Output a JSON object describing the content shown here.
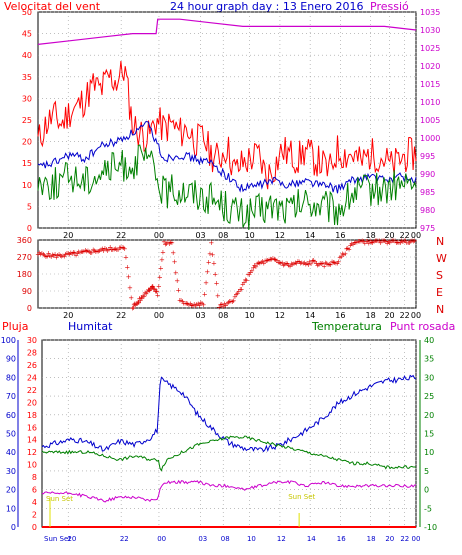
{
  "header": {
    "left_title": "Velocitat del vent",
    "center_title": "24 hour graph day : 13 Enero 2016",
    "right_title": "Pressió"
  },
  "bottom_header": {
    "left": "Pluja",
    "humidity": "Humitat",
    "temperature": "Temperatura",
    "dewpoint": "Punt rosada"
  },
  "colors": {
    "wind": "#ff0000",
    "wind_avg": "#0000cc",
    "wind_low": "#008000",
    "pressure": "#cc00cc",
    "direction": "#dd0000",
    "humidity": "#0000cc",
    "temperature": "#008000",
    "dewpoint": "#cc00cc",
    "rain": "#ff0000",
    "sun": "#e0e000"
  },
  "time_ticks": [
    "20",
    "22",
    "00",
    "03",
    "08",
    "10",
    "12",
    "14",
    "16",
    "18",
    "20",
    "22",
    "00"
  ],
  "bottom_time_ticks": [
    "Sun Set",
    "20",
    "22",
    "00",
    "03",
    "08",
    "10",
    "12",
    "14",
    "16",
    "18",
    "20",
    "22",
    "00"
  ],
  "sun_labels": {
    "rise": "Sun Set",
    "set": "Sun Set"
  },
  "chart_data": [
    {
      "type": "line",
      "title": "24 hour graph day : 13 Enero 2016",
      "left_axis": {
        "label": "Velocitat del vent",
        "ylim": [
          0,
          50
        ],
        "ticks": [
          "0",
          "5",
          "10",
          "15",
          "20",
          "25",
          "30",
          "35",
          "40",
          "45",
          "50"
        ]
      },
      "right_axis": {
        "label": "Pressió",
        "ylim": [
          975,
          1035
        ],
        "ticks": [
          "975",
          "980",
          "985",
          "990",
          "995",
          "1000",
          "1005",
          "1010",
          "1015",
          "1020",
          "1025",
          "1030",
          "1035"
        ]
      },
      "series": [
        {
          "name": "wind_gust",
          "axis": "left",
          "x": [
            0,
            0.5,
            1,
            1.5,
            2,
            2.5,
            3,
            3.5,
            4,
            4.5,
            5,
            5.5,
            6,
            6.5,
            7,
            7.5,
            8,
            8.5,
            9,
            9.5,
            10,
            10.5,
            11,
            11.5,
            12,
            12.5,
            13,
            13.5,
            14,
            14.5,
            15,
            15.5,
            16,
            16.5,
            17,
            17.5,
            18,
            18.5,
            19,
            19.5,
            20,
            20.5,
            21,
            21.5,
            22,
            22.5,
            23,
            23.5,
            24
          ],
          "values": [
            20,
            24,
            26,
            24,
            27,
            28,
            30,
            33,
            32,
            35,
            34,
            37,
            24,
            22,
            21,
            25,
            23,
            24,
            22,
            23,
            20,
            21,
            17,
            16,
            19,
            13,
            15,
            16,
            17,
            12,
            14,
            18,
            17,
            16,
            18,
            16,
            15,
            13,
            18,
            17,
            17,
            15,
            17,
            17,
            16,
            14,
            16,
            17,
            17
          ]
        },
        {
          "name": "wind_avg",
          "axis": "left",
          "x": [
            0,
            1,
            2,
            3,
            4,
            5,
            6,
            7,
            8,
            9,
            10,
            11,
            12,
            13,
            14,
            15,
            16,
            17,
            18,
            19,
            20,
            21,
            22,
            23,
            24
          ],
          "values": [
            14,
            15,
            17,
            16,
            19,
            20,
            22,
            24,
            16,
            17,
            16,
            15,
            12,
            9,
            10,
            11,
            10,
            11,
            10,
            9,
            11,
            12,
            11,
            12,
            11
          ]
        },
        {
          "name": "wind_low",
          "axis": "left",
          "x": [
            0,
            1,
            2,
            3,
            4,
            5,
            6,
            7,
            8,
            9,
            10,
            11,
            12,
            13,
            14,
            15,
            16,
            17,
            18,
            19,
            20,
            21,
            22,
            23,
            24
          ],
          "values": [
            11,
            10,
            12,
            11,
            13,
            14,
            15,
            16,
            8,
            9,
            8,
            7,
            5,
            3,
            4,
            5,
            4,
            6,
            5,
            4,
            8,
            9,
            9,
            10,
            10
          ]
        },
        {
          "name": "pressure",
          "axis": "right",
          "x": [
            0,
            2,
            4,
            6,
            7.5,
            7.6,
            9,
            11,
            13,
            15,
            17,
            19,
            21,
            22,
            24
          ],
          "values": [
            1026,
            1027,
            1028,
            1029,
            1029,
            1033,
            1033,
            1032,
            1031,
            1031,
            1031,
            1031,
            1031,
            1031,
            1030
          ]
        }
      ]
    },
    {
      "type": "scatter",
      "title": "",
      "ylim": [
        0,
        360
      ],
      "left_ticks": [
        "0",
        "90",
        "180",
        "270",
        "360"
      ],
      "right_labels": [
        "N",
        "W",
        "S",
        "E",
        "N"
      ],
      "series": [
        {
          "name": "wind_direction",
          "x": [
            0,
            0.5,
            1,
            1.5,
            2,
            2.5,
            3,
            3.5,
            4,
            4.5,
            5,
            5.5,
            6,
            6.3,
            6.6,
            7,
            7.3,
            7.6,
            8,
            8.5,
            9,
            9.5,
            10,
            10.5,
            11,
            11.5,
            12,
            12.5,
            13,
            13.5,
            14,
            14.5,
            15,
            15.5,
            16,
            16.5,
            17,
            17.5,
            18,
            18.5,
            19,
            19.5,
            20,
            20.5,
            21,
            21.5,
            22,
            22.5,
            23,
            23.5,
            24
          ],
          "values": [
            290,
            285,
            280,
            283,
            288,
            292,
            300,
            305,
            310,
            315,
            320,
            318,
            10,
            30,
            60,
            100,
            120,
            80,
            345,
            350,
            40,
            30,
            20,
            25,
            350,
            15,
            20,
            60,
            120,
            200,
            240,
            250,
            260,
            240,
            230,
            245,
            235,
            250,
            230,
            240,
            245,
            300,
            350,
            355,
            356,
            358,
            355,
            360,
            356,
            358,
            360
          ]
        }
      ]
    },
    {
      "type": "line",
      "title": "",
      "axes": {
        "humidity": {
          "label": "Humitat",
          "ylim": [
            0,
            100
          ],
          "ticks": [
            "0",
            "10",
            "20",
            "30",
            "40",
            "50",
            "60",
            "70",
            "80",
            "90",
            "100"
          ]
        },
        "rain": {
          "label": "Pluja",
          "ylim": [
            0,
            30
          ],
          "ticks": [
            "0",
            "2",
            "4",
            "6",
            "8",
            "10",
            "12",
            "14",
            "16",
            "18",
            "20",
            "22",
            "24",
            "26",
            "28",
            "30"
          ]
        },
        "temperature": {
          "label": "Temperatura",
          "ylim": [
            -10,
            40
          ],
          "ticks": [
            "-10",
            "-5",
            "0",
            "5",
            "10",
            "15",
            "20",
            "25",
            "30",
            "35",
            "40"
          ]
        }
      },
      "series": [
        {
          "name": "humidity",
          "axis": "humidity",
          "x": [
            0,
            1,
            2,
            3,
            4,
            5,
            6,
            7,
            7.4,
            7.6,
            8,
            9,
            10,
            11,
            12,
            13,
            14,
            15,
            16,
            17,
            18,
            19,
            20,
            21,
            22,
            23,
            24
          ],
          "values": [
            43,
            45,
            47,
            45,
            41,
            46,
            44,
            48,
            52,
            79,
            77,
            72,
            60,
            52,
            45,
            42,
            41,
            43,
            47,
            52,
            58,
            66,
            71,
            75,
            78,
            79,
            80
          ]
        },
        {
          "name": "temperature",
          "axis": "temperature",
          "x": [
            0,
            1,
            2,
            3,
            4,
            5,
            6,
            7,
            7.5,
            7.6,
            8,
            9,
            10,
            11,
            12,
            13,
            14,
            15,
            16,
            17,
            18,
            19,
            20,
            21,
            22,
            23,
            24
          ],
          "values": [
            10,
            10,
            10,
            10,
            9,
            8,
            9,
            8,
            8,
            5,
            8,
            10,
            12,
            13,
            14,
            14,
            13,
            12,
            11,
            10,
            9,
            8,
            7,
            7,
            6,
            6,
            6
          ]
        },
        {
          "name": "dewpoint",
          "axis": "temperature",
          "x": [
            0,
            1,
            2,
            3,
            4,
            5,
            6,
            7,
            7.5,
            7.6,
            8,
            9,
            10,
            11,
            12,
            13,
            14,
            15,
            16,
            17,
            18,
            19,
            20,
            21,
            22,
            23,
            24
          ],
          "values": [
            -1,
            -1,
            -1,
            -2,
            -3,
            -2,
            -2,
            -3,
            -2,
            1,
            2,
            2,
            2,
            1,
            1,
            0,
            1,
            2,
            2,
            1,
            2,
            1,
            1,
            1,
            1,
            1,
            1
          ]
        },
        {
          "name": "rain",
          "axis": "rain",
          "x": [
            0,
            24
          ],
          "values": [
            0,
            0
          ]
        }
      ]
    }
  ]
}
